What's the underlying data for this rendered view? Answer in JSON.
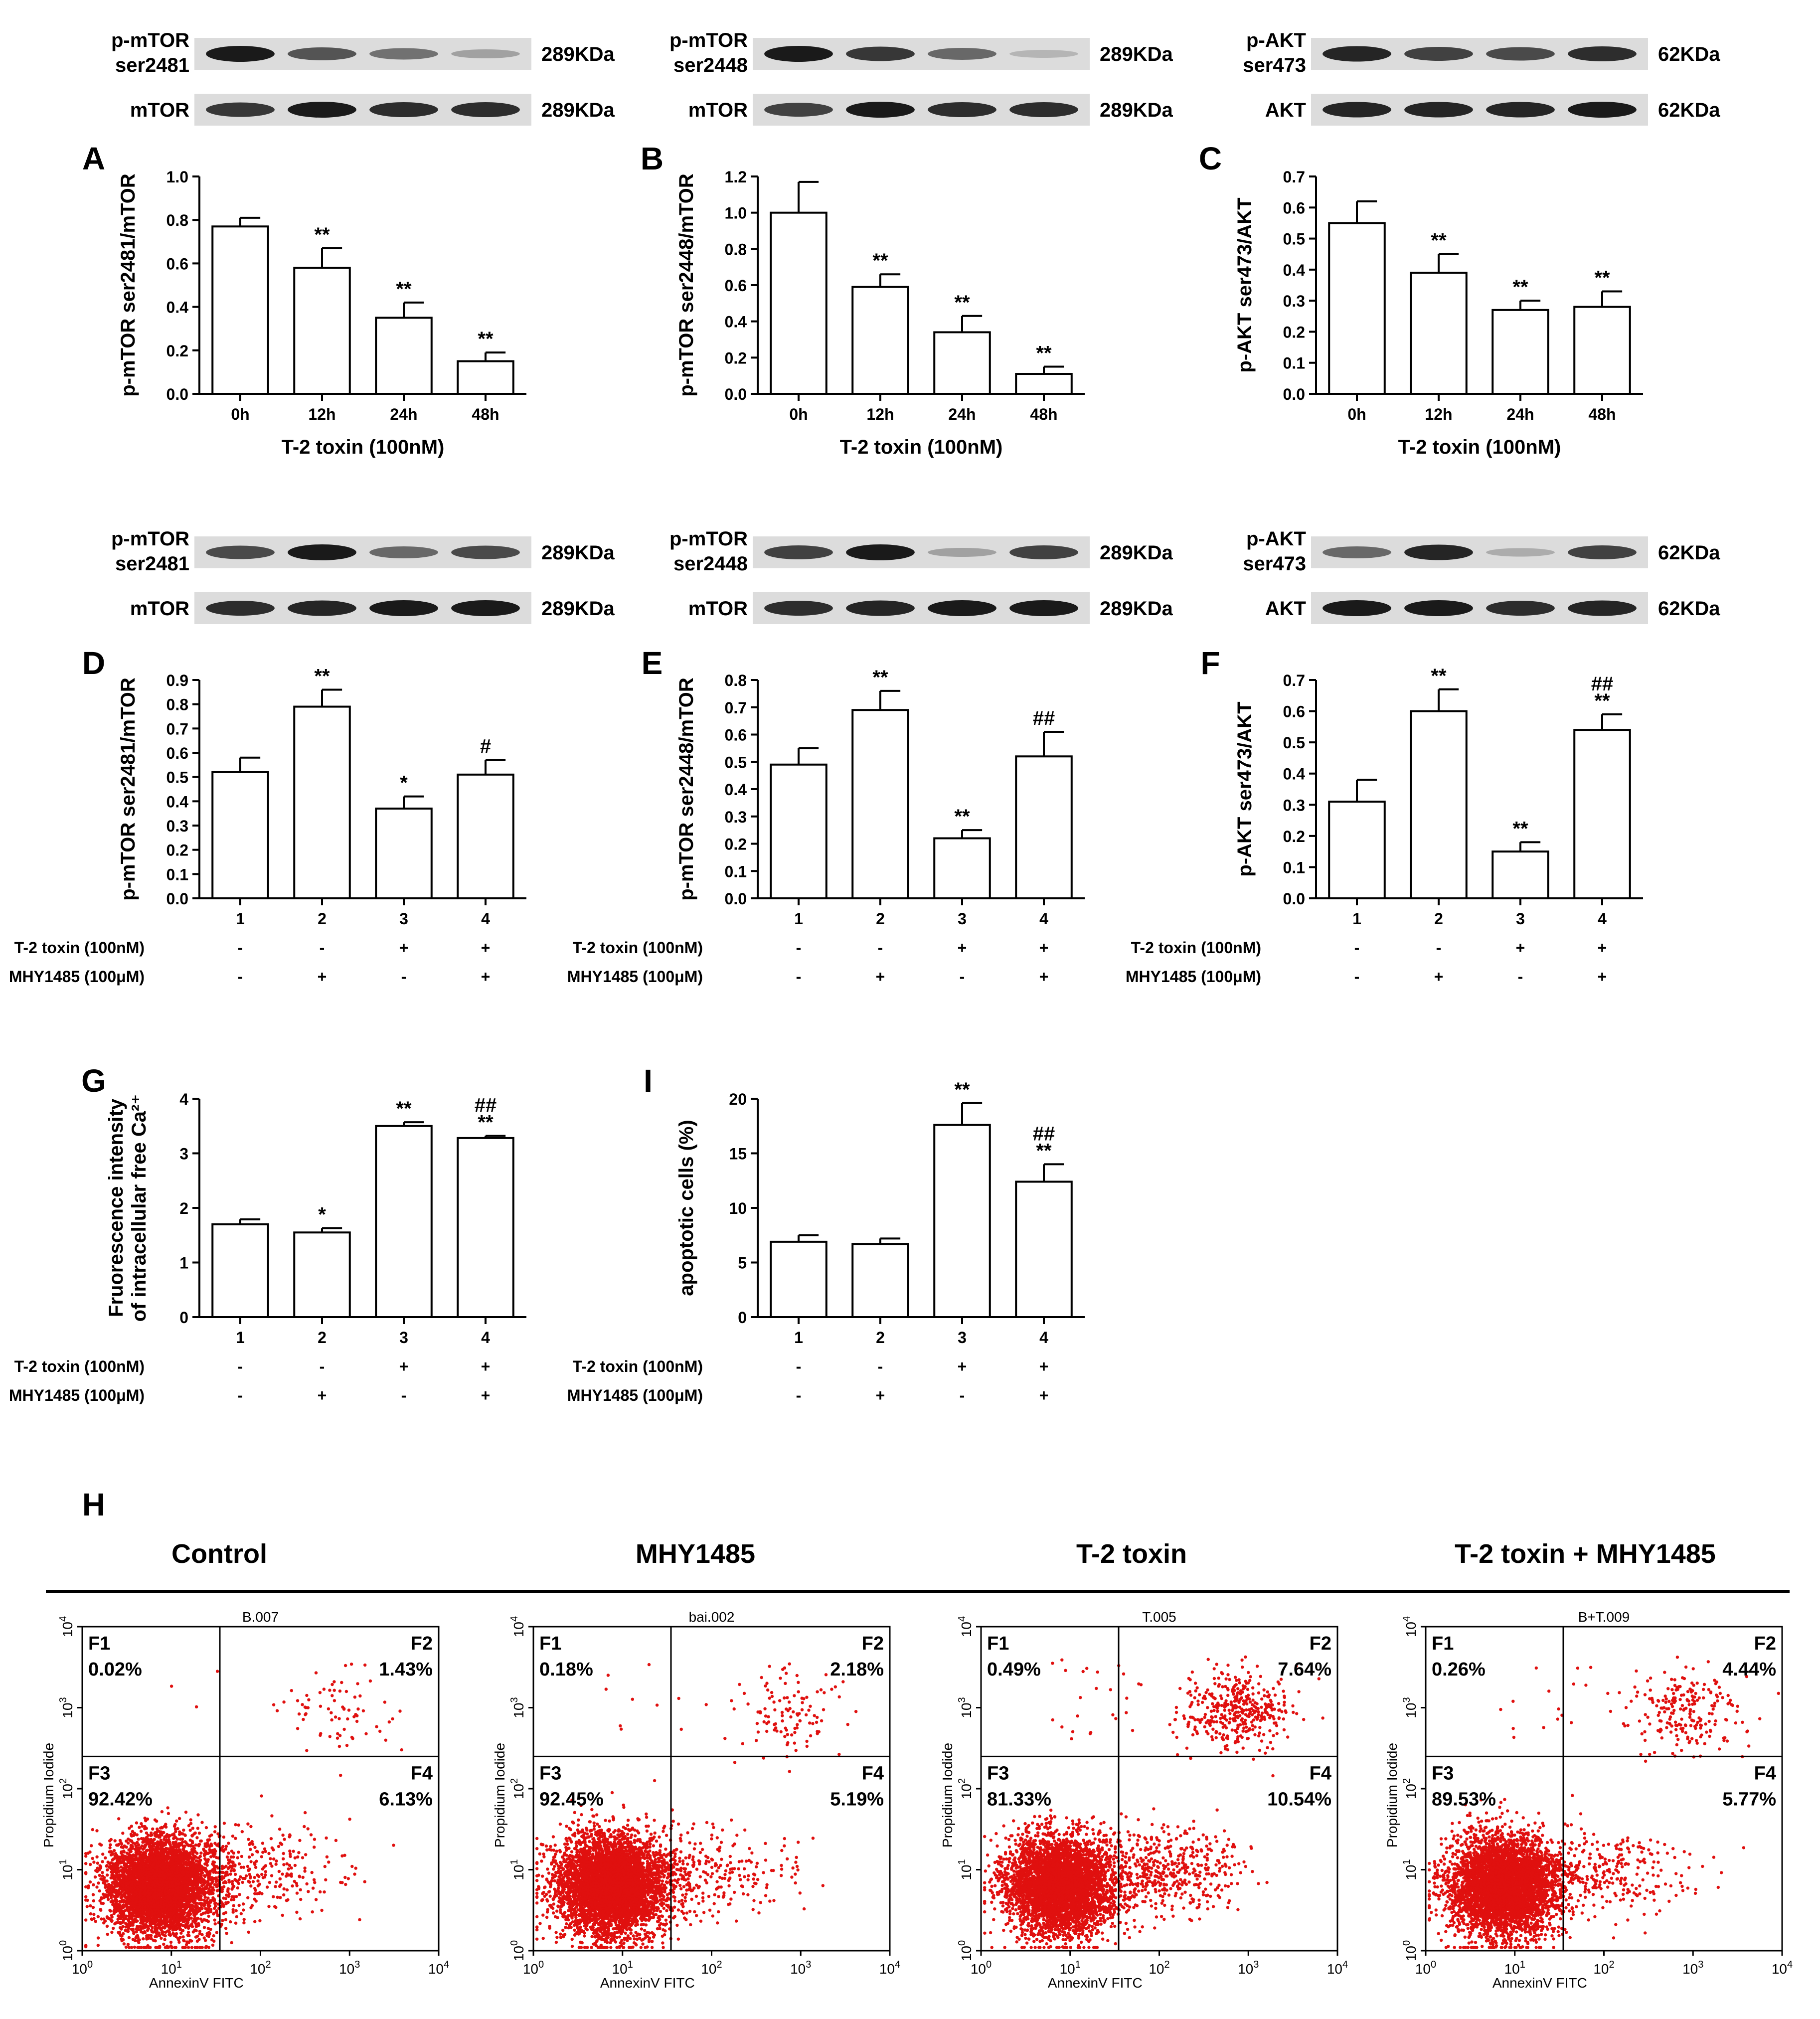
{
  "chart_data": [
    {
      "id": "A",
      "panel_label": "A",
      "type": "bar",
      "categories": [
        "0h",
        "12h",
        "24h",
        "48h"
      ],
      "values": [
        0.77,
        0.58,
        0.35,
        0.15
      ],
      "errors": [
        0.04,
        0.09,
        0.07,
        0.04
      ],
      "significance": [
        "",
        "**",
        "**",
        "**"
      ],
      "ylabel": "p-mTOR ser2481/mTOR",
      "xlabel": "T-2 toxin (100nM)",
      "ylim": [
        0,
        1.0
      ],
      "yticks": [
        "0.0",
        "0.2",
        "0.4",
        "0.6",
        "0.8",
        "1.0"
      ],
      "blot": {
        "rows": [
          {
            "name": "p-mTOR ser2481",
            "size": "289KDa",
            "band_intensity": [
              1.0,
              0.7,
              0.55,
              0.3
            ]
          },
          {
            "name": "mTOR",
            "size": "289KDa",
            "band_intensity": [
              0.85,
              1.0,
              0.9,
              0.9
            ]
          }
        ]
      }
    },
    {
      "id": "B",
      "panel_label": "B",
      "type": "bar",
      "categories": [
        "0h",
        "12h",
        "24h",
        "48h"
      ],
      "values": [
        1.0,
        0.59,
        0.34,
        0.11
      ],
      "errors": [
        0.17,
        0.07,
        0.09,
        0.04
      ],
      "significance": [
        "",
        "**",
        "**",
        "**"
      ],
      "ylabel": "p-mTOR ser2448/mTOR",
      "xlabel": "T-2 toxin (100nM)",
      "ylim": [
        0,
        1.2
      ],
      "yticks": [
        "0.0",
        "0.2",
        "0.4",
        "0.6",
        "0.8",
        "1.0",
        "1.2"
      ],
      "blot": {
        "rows": [
          {
            "name": "p-mTOR ser2448",
            "size": "289KDa",
            "band_intensity": [
              1.0,
              0.85,
              0.6,
              0.2
            ]
          },
          {
            "name": "mTOR",
            "size": "289KDa",
            "band_intensity": [
              0.8,
              1.0,
              0.9,
              0.9
            ]
          }
        ]
      }
    },
    {
      "id": "C",
      "panel_label": "C",
      "type": "bar",
      "categories": [
        "0h",
        "12h",
        "24h",
        "48h"
      ],
      "values": [
        0.55,
        0.39,
        0.27,
        0.28
      ],
      "errors": [
        0.07,
        0.06,
        0.03,
        0.05
      ],
      "significance": [
        "",
        "**",
        "**",
        "**"
      ],
      "ylabel": "p-AKT ser473/AKT",
      "xlabel": "T-2 toxin (100nM)",
      "ylim": [
        0,
        0.7
      ],
      "yticks": [
        "0.0",
        "0.1",
        "0.2",
        "0.3",
        "0.4",
        "0.5",
        "0.6",
        "0.7"
      ],
      "blot": {
        "rows": [
          {
            "name": "p-AKT ser473",
            "size": "62KDa",
            "band_intensity": [
              0.95,
              0.8,
              0.75,
              0.9
            ]
          },
          {
            "name": "AKT",
            "size": "62KDa",
            "band_intensity": [
              0.95,
              0.95,
              0.95,
              1.0
            ]
          }
        ]
      }
    },
    {
      "id": "D",
      "panel_label": "D",
      "type": "bar",
      "categories": [
        "1",
        "2",
        "3",
        "4"
      ],
      "values": [
        0.52,
        0.79,
        0.37,
        0.51
      ],
      "errors": [
        0.06,
        0.07,
        0.05,
        0.06
      ],
      "significance": [
        "",
        "**",
        "*",
        "#"
      ],
      "ylabel": "p-mTOR ser2481/mTOR",
      "ylim": [
        0,
        0.9
      ],
      "yticks": [
        "0.0",
        "0.1",
        "0.2",
        "0.3",
        "0.4",
        "0.5",
        "0.6",
        "0.7",
        "0.8",
        "0.9"
      ],
      "treatments": [
        {
          "label": "T-2 toxin (100nM)",
          "signs": [
            "-",
            "-",
            "+",
            "+"
          ]
        },
        {
          "label": "MHY1485 (100μM)",
          "signs": [
            "-",
            "+",
            "-",
            "+"
          ]
        }
      ],
      "blot": {
        "rows": [
          {
            "name": "p-mTOR ser2481",
            "size": "289KDa",
            "band_intensity": [
              0.75,
              1.0,
              0.6,
              0.75
            ]
          },
          {
            "name": "mTOR",
            "size": "289KDa",
            "band_intensity": [
              0.9,
              0.95,
              1.0,
              1.0
            ]
          }
        ]
      }
    },
    {
      "id": "E",
      "panel_label": "E",
      "type": "bar",
      "categories": [
        "1",
        "2",
        "3",
        "4"
      ],
      "values": [
        0.49,
        0.69,
        0.22,
        0.52
      ],
      "errors": [
        0.06,
        0.07,
        0.03,
        0.09
      ],
      "significance": [
        "",
        "**",
        "**",
        "##"
      ],
      "ylabel": "p-mTOR ser2448/mTOR",
      "ylim": [
        0,
        0.8
      ],
      "yticks": [
        "0.0",
        "0.1",
        "0.2",
        "0.3",
        "0.4",
        "0.5",
        "0.6",
        "0.7",
        "0.8"
      ],
      "treatments": [
        {
          "label": "T-2 toxin (100nM)",
          "signs": [
            "-",
            "-",
            "+",
            "+"
          ]
        },
        {
          "label": "MHY1485 (100μM)",
          "signs": [
            "-",
            "+",
            "-",
            "+"
          ]
        }
      ],
      "blot": {
        "rows": [
          {
            "name": "p-mTOR ser2448",
            "size": "289KDa",
            "band_intensity": [
              0.8,
              1.0,
              0.3,
              0.8
            ]
          },
          {
            "name": "mTOR",
            "size": "289KDa",
            "band_intensity": [
              0.9,
              0.95,
              1.0,
              1.0
            ]
          }
        ]
      }
    },
    {
      "id": "F",
      "panel_label": "F",
      "type": "bar",
      "categories": [
        "1",
        "2",
        "3",
        "4"
      ],
      "values": [
        0.31,
        0.6,
        0.15,
        0.54
      ],
      "errors": [
        0.07,
        0.07,
        0.03,
        0.05
      ],
      "significance": [
        "",
        "**",
        "**",
        "##\n**"
      ],
      "ylabel": "p-AKT ser473/AKT",
      "ylim": [
        0,
        0.7
      ],
      "yticks": [
        "0.0",
        "0.1",
        "0.2",
        "0.3",
        "0.4",
        "0.5",
        "0.6",
        "0.7"
      ],
      "treatments": [
        {
          "label": "T-2 toxin (100nM)",
          "signs": [
            "-",
            "-",
            "+",
            "+"
          ]
        },
        {
          "label": "MHY1485 (100μM)",
          "signs": [
            "-",
            "+",
            "-",
            "+"
          ]
        }
      ],
      "blot": {
        "rows": [
          {
            "name": "p-AKT ser473",
            "size": "62KDa",
            "band_intensity": [
              0.6,
              0.95,
              0.25,
              0.8
            ]
          },
          {
            "name": "AKT",
            "size": "62KDa",
            "band_intensity": [
              1.0,
              1.0,
              0.9,
              0.95
            ]
          }
        ]
      }
    },
    {
      "id": "G",
      "panel_label": "G",
      "type": "bar",
      "categories": [
        "1",
        "2",
        "3",
        "4"
      ],
      "values": [
        1.7,
        1.55,
        3.5,
        3.28
      ],
      "errors": [
        0.09,
        0.08,
        0.07,
        0.04
      ],
      "significance": [
        "",
        "*",
        "**",
        "##\n**"
      ],
      "ylabel": "Fruorescence intensity\nof intracellular free Ca²⁺",
      "ylim": [
        0,
        4
      ],
      "yticks": [
        "0",
        "1",
        "2",
        "3",
        "4"
      ],
      "treatments": [
        {
          "label": "T-2 toxin (100nM)",
          "signs": [
            "-",
            "-",
            "+",
            "+"
          ]
        },
        {
          "label": "MHY1485 (100μM)",
          "signs": [
            "-",
            "+",
            "-",
            "+"
          ]
        }
      ]
    },
    {
      "id": "I",
      "panel_label": "I",
      "type": "bar",
      "categories": [
        "1",
        "2",
        "3",
        "4"
      ],
      "values": [
        6.9,
        6.7,
        17.6,
        12.4
      ],
      "errors": [
        0.6,
        0.5,
        2.0,
        1.6
      ],
      "significance": [
        "",
        "",
        "**",
        "##\n**"
      ],
      "ylabel": "apoptotic cells (%)",
      "ylim": [
        0,
        20
      ],
      "yticks": [
        "0",
        "5",
        "10",
        "15",
        "20"
      ],
      "treatments": [
        {
          "label": "T-2 toxin (100nM)",
          "signs": [
            "-",
            "-",
            "+",
            "+"
          ]
        },
        {
          "label": "MHY1485 (100μM)",
          "signs": [
            "-",
            "+",
            "-",
            "+"
          ]
        }
      ]
    },
    {
      "id": "H",
      "panel_label": "H",
      "type": "scatter",
      "xlabel": "AnnexinV FITC",
      "ylabel": "Propidium Iodide",
      "xscale": "log",
      "yscale": "log",
      "xlim": [
        1,
        10000
      ],
      "ylim": [
        1,
        10000
      ],
      "gate": {
        "x": 35,
        "y": 250
      },
      "plots": [
        {
          "group": "Control",
          "sample": "B.007",
          "quadrants": [
            {
              "name": "F1",
              "value": "0.02%"
            },
            {
              "name": "F2",
              "value": "1.43%"
            },
            {
              "name": "F3",
              "value": "92.42%"
            },
            {
              "name": "F4",
              "value": "6.13%"
            }
          ]
        },
        {
          "group": "MHY1485",
          "sample": "bai.002",
          "quadrants": [
            {
              "name": "F1",
              "value": "0.18%"
            },
            {
              "name": "F2",
              "value": "2.18%"
            },
            {
              "name": "F3",
              "value": "92.45%"
            },
            {
              "name": "F4",
              "value": "5.19%"
            }
          ]
        },
        {
          "group": "T-2 toxin",
          "sample": "T.005",
          "quadrants": [
            {
              "name": "F1",
              "value": "0.49%"
            },
            {
              "name": "F2",
              "value": "7.64%"
            },
            {
              "name": "F3",
              "value": "81.33%"
            },
            {
              "name": "F4",
              "value": "10.54%"
            }
          ]
        },
        {
          "group": "T-2 toxin + MHY1485",
          "sample": "B+T.009",
          "quadrants": [
            {
              "name": "F1",
              "value": "0.26%"
            },
            {
              "name": "F2",
              "value": "4.44%"
            },
            {
              "name": "F3",
              "value": "89.53%"
            },
            {
              "name": "F4",
              "value": "5.77%"
            }
          ]
        }
      ]
    }
  ],
  "colors": {
    "ink": "#000000",
    "bar_fill": "#ffffff",
    "dot": "#e0100f",
    "band": "#1a1a1a",
    "blot_bg": "#dcdcdc"
  }
}
